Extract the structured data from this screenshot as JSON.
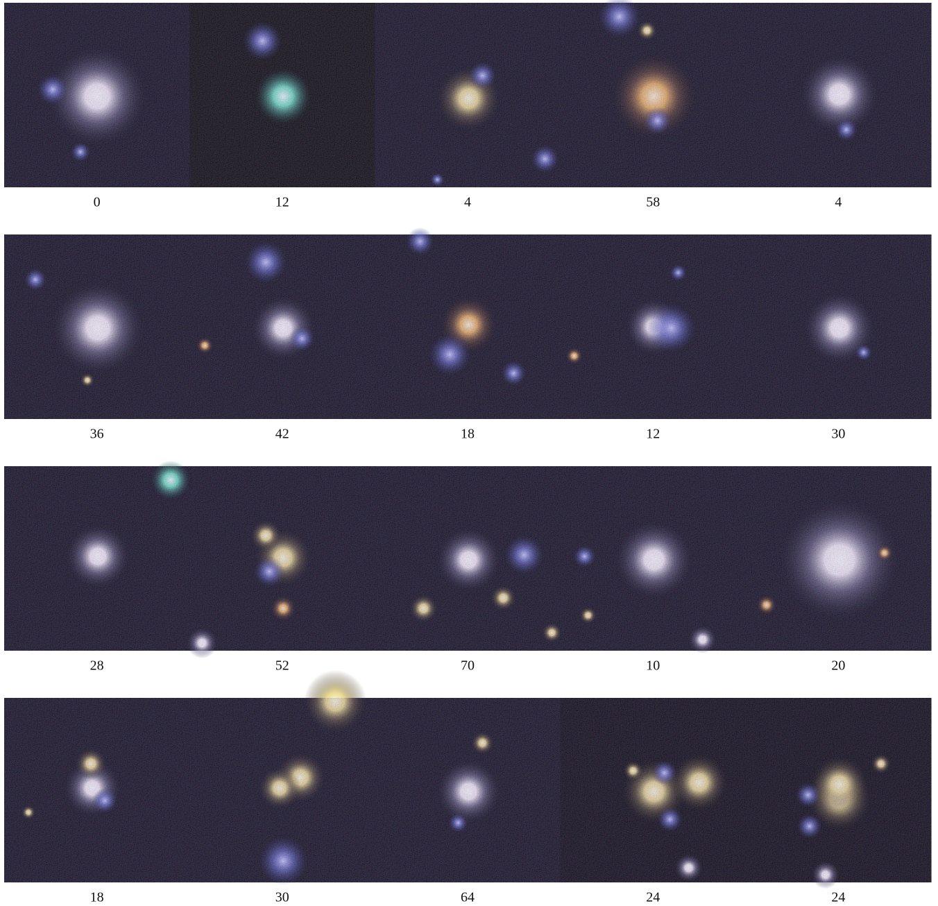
{
  "rows": [
    [
      0,
      12,
      4,
      58,
      4
    ],
    [
      36,
      42,
      18,
      12,
      30
    ],
    [
      28,
      52,
      70,
      10,
      20
    ],
    [
      18,
      30,
      64,
      24,
      24
    ]
  ]
}
